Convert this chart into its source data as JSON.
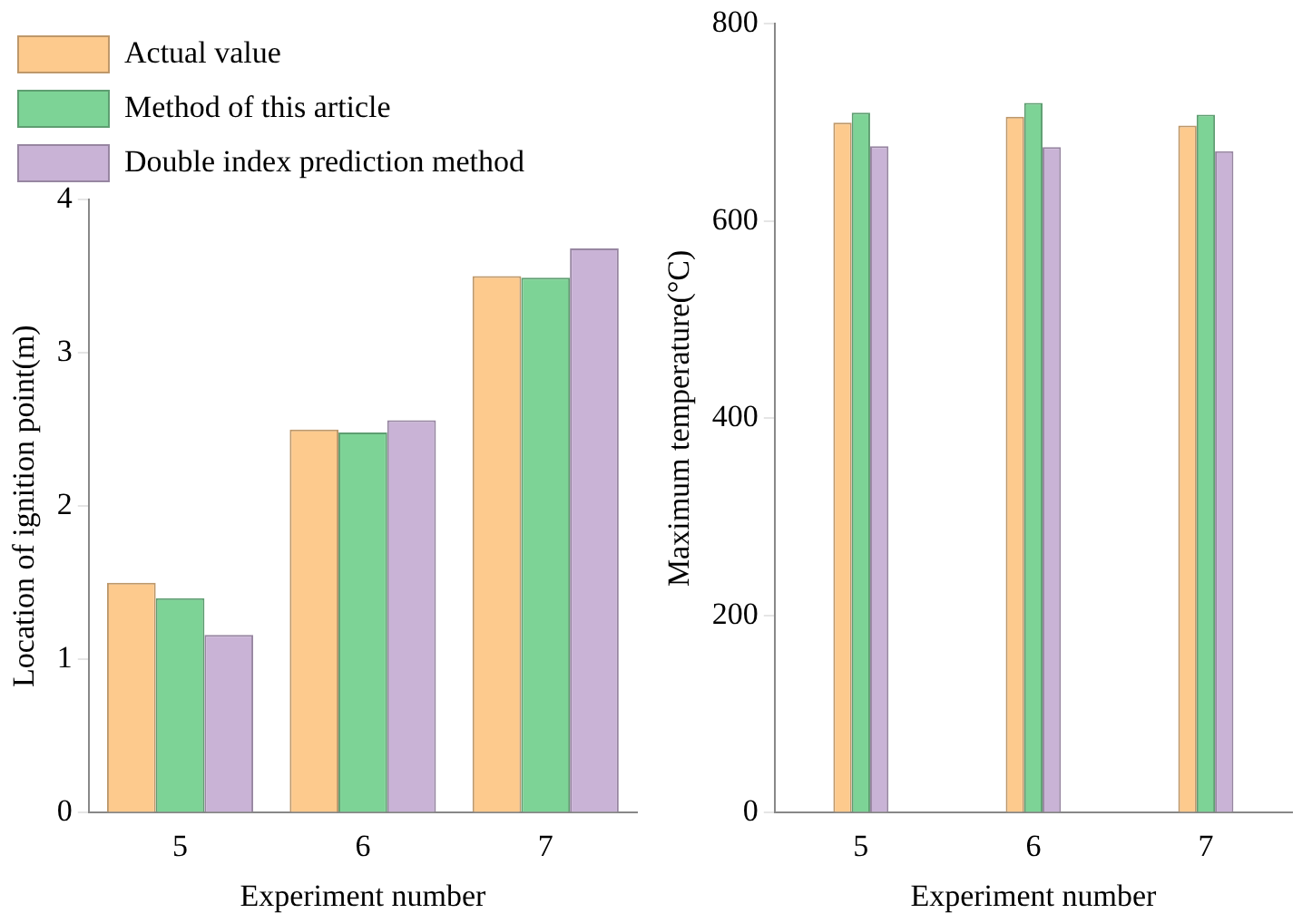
{
  "chart_data": [
    {
      "type": "bar",
      "xlabel": "Experiment number",
      "ylabel": "Location of ignition point(m)",
      "categories": [
        "5",
        "6",
        "7"
      ],
      "ylim": [
        0,
        4
      ],
      "yticks": [
        0,
        1,
        2,
        3,
        4
      ],
      "grid": false,
      "legend": "top left",
      "series": [
        {
          "name": "Actual value",
          "color": "#fdca8d",
          "values": [
            1.5,
            2.5,
            3.5
          ]
        },
        {
          "name": "Method of this article",
          "color": "#7dd396",
          "values": [
            1.4,
            2.48,
            3.49
          ]
        },
        {
          "name": "Double index prediction method",
          "color": "#c9b3d6",
          "values": [
            1.16,
            2.56,
            3.68
          ]
        }
      ]
    },
    {
      "type": "bar",
      "xlabel": "Experiment number",
      "ylabel": "Maximum temperature(°C)",
      "categories": [
        "5",
        "6",
        "7"
      ],
      "ylim": [
        0,
        800
      ],
      "yticks": [
        0,
        200,
        400,
        600,
        800
      ],
      "grid": false,
      "legend": false,
      "series": [
        {
          "color": "#fdca8d",
          "values": [
            700,
            706,
            697
          ]
        },
        {
          "color": "#7dd396",
          "values": [
            710,
            720,
            708
          ]
        },
        {
          "color": "#c9b3d6",
          "values": [
            676,
            675,
            671
          ]
        }
      ]
    }
  ]
}
